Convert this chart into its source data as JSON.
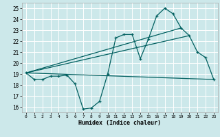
{
  "xlabel": "Humidex (Indice chaleur)",
  "bg_color": "#cce8ea",
  "grid_color": "#ffffff",
  "line_color": "#005f5f",
  "xlim": [
    -0.5,
    23.5
  ],
  "ylim": [
    15.5,
    25.5
  ],
  "yticks": [
    16,
    17,
    18,
    19,
    20,
    21,
    22,
    23,
    24,
    25
  ],
  "xticks": [
    0,
    1,
    2,
    3,
    4,
    5,
    6,
    7,
    8,
    9,
    10,
    11,
    12,
    13,
    14,
    15,
    16,
    17,
    18,
    19,
    20,
    21,
    22,
    23
  ],
  "series_main": {
    "x": [
      0,
      1,
      2,
      3,
      4,
      5,
      6,
      7,
      8,
      9,
      10,
      11,
      12,
      13,
      14,
      15,
      16,
      17,
      18,
      19,
      20,
      21,
      22,
      23
    ],
    "y": [
      19.1,
      18.5,
      18.5,
      18.8,
      18.8,
      18.9,
      18.1,
      15.8,
      15.9,
      16.5,
      19.0,
      22.3,
      22.6,
      22.6,
      20.4,
      22.2,
      24.3,
      25.0,
      24.5,
      23.2,
      22.5,
      21.0,
      20.5,
      18.5
    ]
  },
  "line1": {
    "x": [
      0,
      23
    ],
    "y": [
      19.1,
      18.5
    ]
  },
  "line2": {
    "x": [
      0,
      19
    ],
    "y": [
      19.1,
      23.2
    ]
  },
  "line3": {
    "x": [
      0,
      20
    ],
    "y": [
      19.1,
      22.5
    ]
  }
}
